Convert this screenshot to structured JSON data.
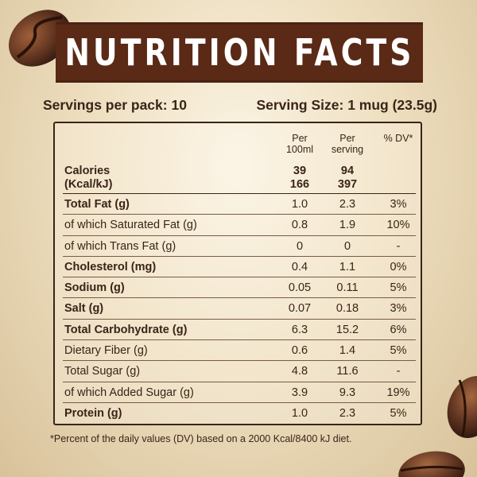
{
  "title": "NUTRITION FACTS",
  "servings_per_pack": "Servings per pack: 10",
  "serving_size": "Serving Size: 1 mug (23.5g)",
  "columns": {
    "per_100ml_line1": "Per",
    "per_100ml_line2": "100ml",
    "per_serving_line1": "Per",
    "per_serving_line2": "serving",
    "dv": "% DV*"
  },
  "calories": {
    "label_line1": "Calories",
    "label_line2": "(Kcal/kJ)",
    "per_100ml_line1": "39",
    "per_100ml_line2": "166",
    "per_serving_line1": "94",
    "per_serving_line2": "397"
  },
  "rows": [
    {
      "label": "Total Fat (g)",
      "per_100ml": "1.0",
      "per_serving": "2.3",
      "dv": "3%"
    },
    {
      "label": "of which Saturated Fat (g)",
      "per_100ml": "0.8",
      "per_serving": "1.9",
      "dv": "10%"
    },
    {
      "label": "of which Trans Fat (g)",
      "per_100ml": "0",
      "per_serving": "0",
      "dv": "-"
    },
    {
      "label": "Cholesterol (mg)",
      "per_100ml": "0.4",
      "per_serving": "1.1",
      "dv": "0%"
    },
    {
      "label": "Sodium (g)",
      "per_100ml": "0.05",
      "per_serving": "0.11",
      "dv": "5%"
    },
    {
      "label": "Salt (g)",
      "per_100ml": "0.07",
      "per_serving": "0.18",
      "dv": "3%"
    },
    {
      "label": "Total Carbohydrate (g)",
      "per_100ml": "6.3",
      "per_serving": "15.2",
      "dv": "6%"
    },
    {
      "label": "Dietary Fiber (g)",
      "per_100ml": "0.6",
      "per_serving": "1.4",
      "dv": "5%"
    },
    {
      "label": "Total Sugar (g)",
      "per_100ml": "4.8",
      "per_serving": "11.6",
      "dv": "-"
    },
    {
      "label": "of which Added Sugar (g)",
      "per_100ml": "3.9",
      "per_serving": "9.3",
      "dv": "19%"
    },
    {
      "label": "Protein (g)",
      "per_100ml": "1.0",
      "per_serving": "2.3",
      "dv": "5%"
    }
  ],
  "footnote": "*Percent of the daily values (DV) based on a 2000 Kcal/8400 kJ diet.",
  "colors": {
    "banner": "#5a2a17",
    "text": "#3a2418",
    "background": "#eedfc0",
    "bean": "#5e3320"
  },
  "icons": [
    "coffee-bean-icon"
  ]
}
